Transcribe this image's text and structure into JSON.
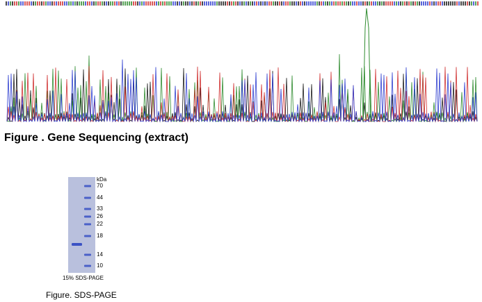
{
  "figure1": {
    "caption": "Figure . Gene Sequencing (extract)"
  },
  "figure2": {
    "caption": "Figure. SDS-PAGE",
    "gel_label": "15% SDS-PAGE",
    "unit": "kDa",
    "markers": [
      70,
      44,
      33,
      26,
      22,
      18,
      14,
      10
    ]
  }
}
